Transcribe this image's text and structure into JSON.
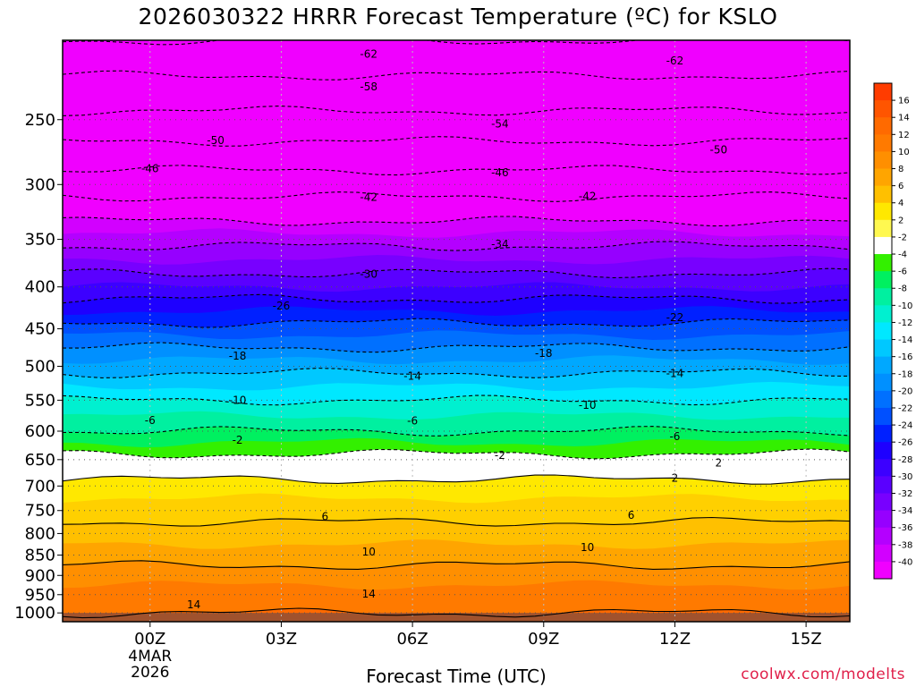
{
  "title": "2026030322 HRRR Forecast Temperature (ºC) for KSLO",
  "credit": "coolwx.com/modelts",
  "chart_data": {
    "type": "heatmap",
    "title": "2026030322 HRRR Forecast Temperature (ºC) for KSLO",
    "xlabel": "Forecast Time (UTC)",
    "ylabel": "",
    "x_ticks": [
      {
        "hour": 2,
        "label": "00Z",
        "sub": [
          "4MAR",
          "2026"
        ]
      },
      {
        "hour": 5,
        "label": "03Z",
        "sub": []
      },
      {
        "hour": 8,
        "label": "06Z",
        "sub": []
      },
      {
        "hour": 11,
        "label": "09Z",
        "sub": []
      },
      {
        "hour": 14,
        "label": "12Z",
        "sub": []
      },
      {
        "hour": 17,
        "label": "15Z",
        "sub": []
      }
    ],
    "xlim_hours_since_22Z_3MAR": [
      0,
      18
    ],
    "y_axis": "pressure_hPa",
    "ylim_hPa": [
      1025,
      200
    ],
    "y_ticks": [
      250,
      300,
      350,
      400,
      450,
      500,
      550,
      600,
      650,
      700,
      750,
      800,
      850,
      900,
      950,
      1000
    ],
    "gridlines": "dotted",
    "surface_pressure_hPa": 1000,
    "temperature_profile": {
      "pressure_hPa": [
        1000,
        950,
        900,
        850,
        800,
        750,
        700,
        650,
        600,
        550,
        500,
        450,
        400,
        350,
        300,
        250,
        200
      ],
      "temp_C": [
        14,
        13,
        11,
        9,
        7,
        5,
        3,
        -1,
        -6,
        -10,
        -15,
        -21,
        -28,
        -35,
        -44,
        -53,
        -62
      ]
    },
    "contour_labels": [
      {
        "value": "-62",
        "hour": 7.0,
        "p": 208
      },
      {
        "value": "-62",
        "hour": 14.0,
        "p": 212
      },
      {
        "value": "-58",
        "hour": 7.0,
        "p": 228
      },
      {
        "value": "-54",
        "hour": 10.0,
        "p": 253
      },
      {
        "value": "-50",
        "hour": 3.5,
        "p": 265
      },
      {
        "value": "-50",
        "hour": 15.0,
        "p": 272
      },
      {
        "value": "-46",
        "hour": 2.0,
        "p": 287
      },
      {
        "value": "-46",
        "hour": 10.0,
        "p": 290
      },
      {
        "value": "-42",
        "hour": 7.0,
        "p": 311
      },
      {
        "value": "-42",
        "hour": 12.0,
        "p": 310
      },
      {
        "value": "-34",
        "hour": 10.0,
        "p": 355
      },
      {
        "value": "-30",
        "hour": 7.0,
        "p": 386
      },
      {
        "value": "-26",
        "hour": 5.0,
        "p": 422
      },
      {
        "value": "-22",
        "hour": 14.0,
        "p": 436
      },
      {
        "value": "-18",
        "hour": 4.0,
        "p": 486
      },
      {
        "value": "-18",
        "hour": 11.0,
        "p": 482
      },
      {
        "value": "-14",
        "hour": 8.0,
        "p": 514
      },
      {
        "value": "-14",
        "hour": 14.0,
        "p": 510
      },
      {
        "value": "-10",
        "hour": 4.0,
        "p": 550
      },
      {
        "value": "-10",
        "hour": 12.0,
        "p": 558
      },
      {
        "value": "-6",
        "hour": 2.0,
        "p": 582
      },
      {
        "value": "-6",
        "hour": 8.0,
        "p": 583
      },
      {
        "value": "-6",
        "hour": 14.0,
        "p": 609
      },
      {
        "value": "-2",
        "hour": 4.0,
        "p": 615
      },
      {
        "value": "-2",
        "hour": 10.0,
        "p": 642
      },
      {
        "value": "2",
        "hour": 15.0,
        "p": 656
      },
      {
        "value": "2",
        "hour": 14.0,
        "p": 685
      },
      {
        "value": "6",
        "hour": 6.0,
        "p": 763
      },
      {
        "value": "6",
        "hour": 13.0,
        "p": 760
      },
      {
        "value": "10",
        "hour": 7.0,
        "p": 842
      },
      {
        "value": "10",
        "hour": 12.0,
        "p": 832
      },
      {
        "value": "14",
        "hour": 3.0,
        "p": 977
      },
      {
        "value": "14",
        "hour": 7.0,
        "p": 948
      }
    ]
  },
  "colorbar": {
    "labels": [
      "16",
      "14",
      "12",
      "10",
      "8",
      "6",
      "4",
      "2",
      "-2",
      "-4",
      "-6",
      "-8",
      "-10",
      "-12",
      "-14",
      "-16",
      "-18",
      "-20",
      "-22",
      "-24",
      "-26",
      "-28",
      "-30",
      "-32",
      "-34",
      "-36",
      "-38",
      "-40"
    ],
    "colors": [
      "#ff3c00",
      "#ff5500",
      "#ff6a00",
      "#ff7a00",
      "#ff8f00",
      "#ffa500",
      "#ffc000",
      "#ffe800",
      "#fff850",
      "#ffffff",
      "#33f000",
      "#00f060",
      "#00f0a0",
      "#00f0d0",
      "#00e8ff",
      "#00c8ff",
      "#00a8ff",
      "#0090ff",
      "#0070ff",
      "#0050ff",
      "#0020ff",
      "#1e00ff",
      "#3c00ff",
      "#5a00ff",
      "#7800ff",
      "#9600ff",
      "#b400ff",
      "#d200ff",
      "#f000ff"
    ]
  }
}
